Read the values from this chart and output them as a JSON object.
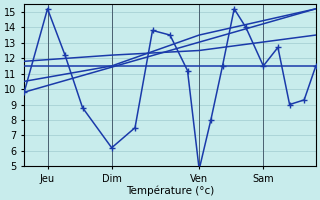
{
  "bg_color": "#c8ecec",
  "grid_color": "#a0ccd0",
  "line_color": "#1a3aaa",
  "xlabel": "Température (°c)",
  "ylim": [
    5,
    15.5
  ],
  "xlim": [
    0,
    100
  ],
  "yticks": [
    5,
    6,
    7,
    8,
    9,
    10,
    11,
    12,
    13,
    14,
    15
  ],
  "xtick_positions": [
    8,
    30,
    60,
    82
  ],
  "xtick_labels": [
    "Jeu",
    "Dim",
    "Ven",
    "Sam"
  ],
  "vline_positions": [
    8,
    30,
    60,
    82
  ],
  "main_series_x": [
    0,
    8,
    14,
    20,
    30,
    38,
    44,
    50,
    56,
    60,
    64,
    68,
    72,
    76,
    82,
    87,
    91,
    96,
    100
  ],
  "main_series_y": [
    9.8,
    15.2,
    12.2,
    8.8,
    6.2,
    7.5,
    13.8,
    13.5,
    11.2,
    4.8,
    8.0,
    11.5,
    15.2,
    14.0,
    11.5,
    12.7,
    9.0,
    9.3,
    11.5
  ],
  "line1_x": [
    0,
    100
  ],
  "line1_y": [
    9.8,
    15.2
  ],
  "line2_x": [
    0,
    100
  ],
  "line2_y": [
    11.5,
    11.5
  ],
  "line3_x": [
    0,
    30,
    60,
    100
  ],
  "line3_y": [
    10.5,
    11.5,
    13.5,
    15.2
  ],
  "line4_x": [
    0,
    30,
    60,
    100
  ],
  "line4_y": [
    11.8,
    12.2,
    12.5,
    13.5
  ],
  "marker_size": 2.5,
  "line_width": 1.1
}
